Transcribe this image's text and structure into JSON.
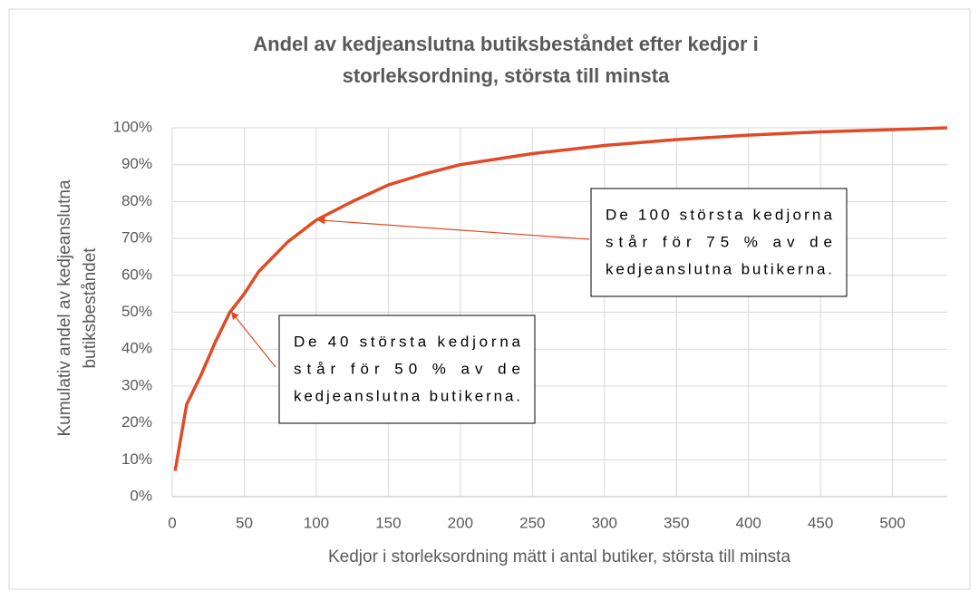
{
  "chart_data": {
    "type": "line",
    "title": [
      "Andel av kedjeanslutna butiksbeståndet efter kedjor i",
      "storleksordning, största till minsta"
    ],
    "x_label": "Kedjor i storleksordning mätt i antal butiker, största till minsta",
    "y_label": [
      "Kumulativ andel av kedjeanslutna",
      "butiksbeståndet"
    ],
    "x": [
      2,
      10,
      20,
      30,
      40,
      50,
      60,
      80,
      100,
      125,
      150,
      175,
      200,
      250,
      300,
      350,
      400,
      450,
      500,
      538
    ],
    "series": [
      {
        "name": "Kumulativ andel",
        "color": "#e04a27",
        "values": [
          7,
          25,
          33,
          42,
          50,
          55,
          61,
          69,
          75,
          80,
          84.5,
          87.5,
          90,
          93,
          95.2,
          96.8,
          98,
          98.9,
          99.5,
          100
        ]
      }
    ],
    "xlim": [
      0,
      538
    ],
    "xticks": [
      0,
      50,
      100,
      150,
      200,
      250,
      300,
      350,
      400,
      450,
      500
    ],
    "ylim": [
      0,
      100
    ],
    "yticks": [
      {
        "value": 0,
        "label": "0%"
      },
      {
        "value": 10,
        "label": "10%"
      },
      {
        "value": 20,
        "label": "20%"
      },
      {
        "value": 30,
        "label": "30%"
      },
      {
        "value": 40,
        "label": "40%"
      },
      {
        "value": 50,
        "label": "50%"
      },
      {
        "value": 60,
        "label": "60%"
      },
      {
        "value": 70,
        "label": "70%"
      },
      {
        "value": 80,
        "label": "80%"
      },
      {
        "value": 90,
        "label": "90%"
      },
      {
        "value": 100,
        "label": "100%"
      }
    ],
    "grid": true,
    "annotations": [
      {
        "text": [
          "De 100 största kedjorna",
          "står för 75 % av de",
          "kedjeanslutna butikerna."
        ],
        "x": 100,
        "y": 75
      },
      {
        "text": [
          "De 40 största kedjorna",
          "står för 50 % av de",
          "kedjeanslutna butikerna."
        ],
        "x": 40,
        "y": 50
      }
    ]
  }
}
